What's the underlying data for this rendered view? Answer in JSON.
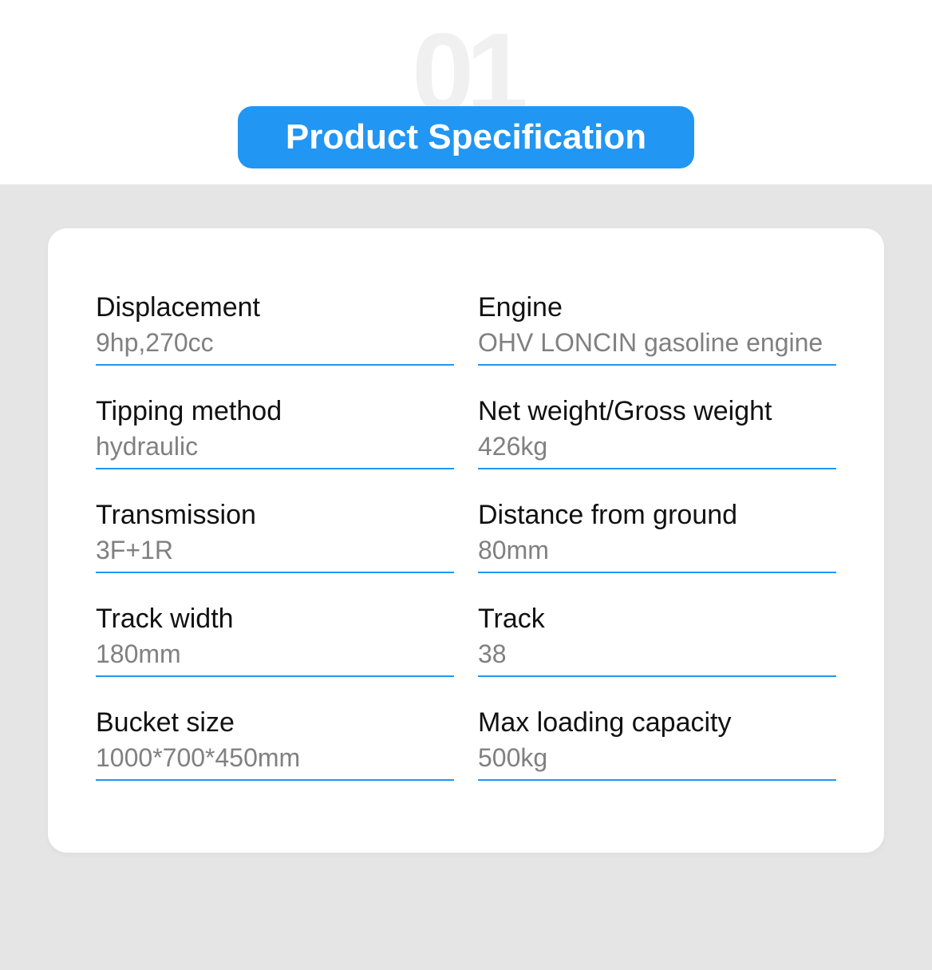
{
  "header": {
    "bg_number": "01",
    "title": "Product Specification",
    "colors": {
      "badge_bg": "#2196f3",
      "badge_text": "#ffffff",
      "bg_number_color": "#f0f0f0",
      "page_bg_top": "#ffffff",
      "page_bg_bottom": "#e5e5e5",
      "card_bg": "#ffffff",
      "label_color": "#111111",
      "value_color": "#808080",
      "underline_color": "#2196f3"
    }
  },
  "specs": {
    "left": [
      {
        "label": "Displacement",
        "value": "9hp,270cc"
      },
      {
        "label": "Tipping method",
        "value": "hydraulic"
      },
      {
        "label": "Transmission",
        "value": "3F+1R"
      },
      {
        "label": "Track width",
        "value": "180mm"
      },
      {
        "label": "Bucket size",
        "value": "1000*700*450mm"
      }
    ],
    "right": [
      {
        "label": "Engine",
        "value": "OHV LONCIN gasoline engine"
      },
      {
        "label": "Net weight/Gross weight",
        "value": "426kg"
      },
      {
        "label": "Distance from ground",
        "value": "80mm"
      },
      {
        "label": "Track",
        "value": "38"
      },
      {
        "label": "Max loading capacity",
        "value": "500kg"
      }
    ]
  }
}
